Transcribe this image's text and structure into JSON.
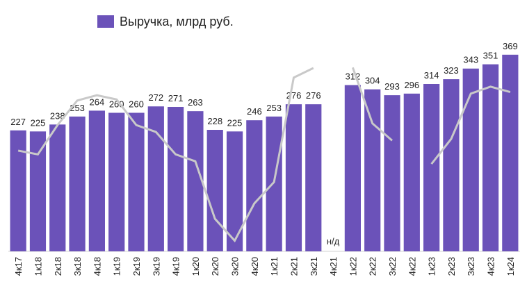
{
  "chart_data": {
    "type": "bar",
    "categories": [
      "4к17",
      "1к18",
      "2к18",
      "3к18",
      "4к18",
      "1к19",
      "2к19",
      "3к19",
      "4к19",
      "1к20",
      "2к20",
      "3к20",
      "4к20",
      "1к21",
      "2к21",
      "3к21",
      "4к21",
      "1к22",
      "2к22",
      "3к22",
      "4к22",
      "1к23",
      "2к23",
      "3к23",
      "4к23",
      "1к24"
    ],
    "series": [
      {
        "name": "Выручка, млрд руб.",
        "type": "bar",
        "color": "#6b52b9",
        "values": [
          227,
          225,
          238,
          253,
          264,
          260,
          260,
          272,
          271,
          263,
          228,
          225,
          246,
          253,
          276,
          276,
          null,
          312,
          304,
          293,
          296,
          314,
          323,
          343,
          351,
          369
        ],
        "value_labels": [
          "227",
          "225",
          "238",
          "253",
          "264",
          "260",
          "260",
          "272",
          "271",
          "263",
          "228",
          "225",
          "246",
          "253",
          "276",
          "276",
          "н/д",
          "312",
          "304",
          "293",
          "296",
          "314",
          "323",
          "343",
          "351",
          "369"
        ]
      },
      {
        "type": "line",
        "color": "#c9c9c9",
        "values": [
          189,
          182,
          237,
          283,
          293,
          285,
          237,
          224,
          182,
          169,
          61,
          20,
          90,
          130,
          326,
          344,
          null,
          345,
          240,
          208,
          null,
          164,
          211,
          296,
          309,
          299
        ]
      }
    ],
    "ylim": [
      0,
      400
    ],
    "legend": "top-left"
  }
}
